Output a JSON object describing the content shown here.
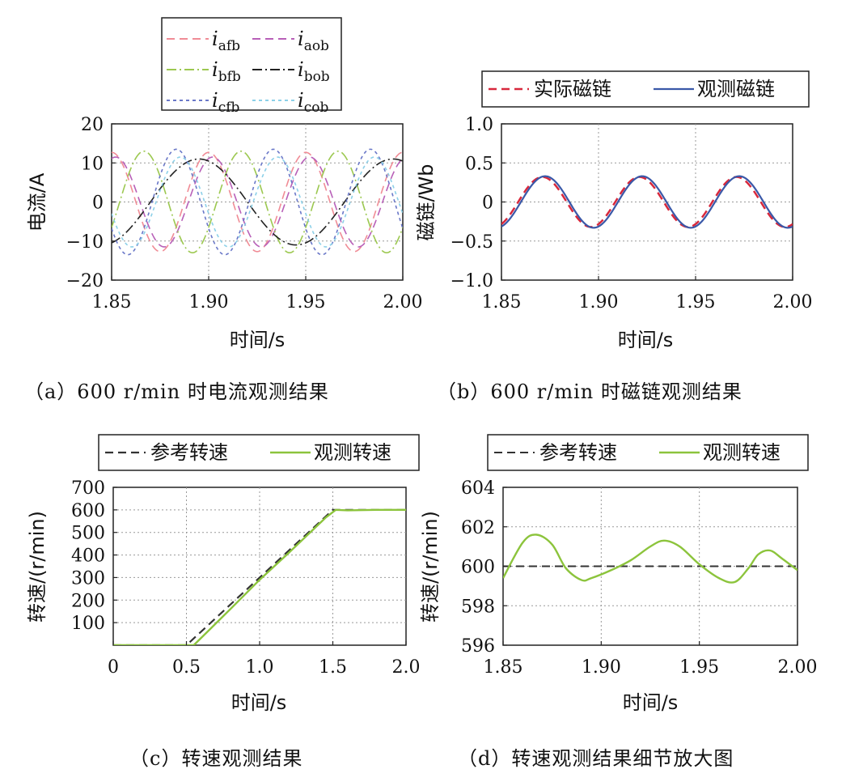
{
  "chart_data": [
    {
      "id": "a",
      "type": "line",
      "caption": "（a）600 r/min 时电流观测结果",
      "xlabel": "时间/s",
      "ylabel": "电流/A",
      "xlim": [
        1.85,
        2.0
      ],
      "ylim": [
        -20,
        20
      ],
      "xticks": [
        1.85,
        1.9,
        1.95,
        2.0
      ],
      "xtick_labels": [
        "1.85",
        "1.90",
        "1.95",
        "2.00"
      ],
      "yticks": [
        20,
        10,
        0,
        -10,
        -20
      ],
      "ytick_labels": [
        "20",
        "10",
        "0",
        "−10",
        "−20"
      ],
      "grid": true,
      "legend_placement": "top",
      "series": [
        {
          "name": "iafb",
          "label_base": "i",
          "label_sub": "afb",
          "color": "#f08c96",
          "dash": "10,6",
          "amplitude": 12.7,
          "frequency_hz": 20,
          "phase_deg": 90
        },
        {
          "name": "iaob",
          "label_base": "i",
          "label_sub": "aob",
          "color": "#b860b8",
          "dash": "10,6",
          "amplitude": 11.5,
          "frequency_hz": 20,
          "phase_deg": 75
        },
        {
          "name": "ibfb",
          "label_base": "i",
          "label_sub": "bfb",
          "color": "#9cc850",
          "dash": "12,4,2,4",
          "amplitude": 13.0,
          "frequency_hz": 20,
          "phase_deg": -30
        },
        {
          "name": "ibob",
          "label_base": "i",
          "label_sub": "bob",
          "color": "#222222",
          "dash": "12,4,2,4",
          "amplitude": 11.0,
          "frequency_hz": 10,
          "phase_deg": -72
        },
        {
          "name": "icfb",
          "label_base": "i",
          "label_sub": "cfb",
          "color": "#6a78c8",
          "dash": "4,4",
          "amplitude": 13.5,
          "frequency_hz": 20,
          "phase_deg": 210
        },
        {
          "name": "icob",
          "label_base": "i",
          "label_sub": "cob",
          "color": "#8cd0e8",
          "dash": "4,4",
          "amplitude": 11.5,
          "frequency_hz": 20,
          "phase_deg": 195
        }
      ]
    },
    {
      "id": "b",
      "type": "line",
      "caption": "（b）600 r/min 时磁链观测结果",
      "xlabel": "时间/s",
      "ylabel": "磁链/Wb",
      "xlim": [
        1.85,
        2.0
      ],
      "ylim": [
        -1.0,
        1.0
      ],
      "xticks": [
        1.85,
        1.9,
        1.95,
        2.0
      ],
      "xtick_labels": [
        "1.85",
        "1.90",
        "1.95",
        "2.00"
      ],
      "yticks": [
        1.0,
        0.5,
        0,
        -0.5,
        -1.0
      ],
      "ytick_labels": [
        "1.0",
        "0.5",
        "0",
        "−0.5",
        "−1.0"
      ],
      "grid": true,
      "legend_placement": "top",
      "series": [
        {
          "name": "实际磁链",
          "color": "#d8283c",
          "dash": "10,6",
          "width": 2.5,
          "amplitude": 0.32,
          "frequency_hz": 20,
          "phase_deg": -62
        },
        {
          "name": "观测磁链",
          "color": "#3a58a8",
          "dash": "",
          "width": 2.2,
          "amplitude": 0.33,
          "frequency_hz": 20,
          "phase_deg": -72
        }
      ]
    },
    {
      "id": "c",
      "type": "line",
      "caption": "（c）转速观测结果",
      "xlabel": "时间/s",
      "ylabel": "转速/(r/min)",
      "xlim": [
        0,
        2.0
      ],
      "ylim": [
        0,
        700
      ],
      "xticks": [
        0,
        0.5,
        1.0,
        1.5,
        2.0
      ],
      "xtick_labels": [
        "0",
        "0.5",
        "1.0",
        "1.5",
        "2.0"
      ],
      "yticks": [
        700,
        600,
        500,
        400,
        300,
        200,
        100
      ],
      "ytick_labels": [
        "700",
        "600",
        "500",
        "400",
        "300",
        "200",
        "100"
      ],
      "grid": true,
      "legend_placement": "top",
      "series": [
        {
          "name": "参考转速",
          "color": "#333333",
          "dash": "10,6",
          "width": 2.2,
          "x": [
            0,
            0.5,
            1.5,
            2.0
          ],
          "y": [
            0,
            0,
            600,
            600
          ]
        },
        {
          "name": "观测转速",
          "color": "#8cc43c",
          "dash": "",
          "width": 2.4,
          "x": [
            0,
            0.55,
            0.8,
            1.0,
            1.2,
            1.45,
            1.52,
            1.6,
            1.8,
            2.0
          ],
          "y": [
            0,
            0,
            160,
            290,
            410,
            565,
            600,
            598,
            600,
            600
          ]
        }
      ]
    },
    {
      "id": "d",
      "type": "line",
      "caption": "（d）转速观测结果细节放大图",
      "xlabel": "时间/s",
      "ylabel": "转速/(r/min)",
      "xlim": [
        1.85,
        2.0
      ],
      "ylim": [
        596,
        604
      ],
      "xticks": [
        1.85,
        1.9,
        1.95,
        2.0
      ],
      "xtick_labels": [
        "1.85",
        "1.90",
        "1.95",
        "2.00"
      ],
      "yticks": [
        604,
        602,
        600,
        598,
        596
      ],
      "ytick_labels": [
        "604",
        "602",
        "600",
        "598",
        "596"
      ],
      "grid": true,
      "legend_placement": "top",
      "series": [
        {
          "name": "参考转速",
          "color": "#333333",
          "dash": "10,6",
          "width": 2.0,
          "x": [
            1.85,
            2.0
          ],
          "y": [
            600,
            600
          ]
        },
        {
          "name": "观测转速",
          "color": "#8cc43c",
          "dash": "",
          "width": 2.4,
          "x": [
            1.85,
            1.86,
            1.867,
            1.875,
            1.882,
            1.89,
            1.895,
            1.905,
            1.915,
            1.925,
            1.932,
            1.94,
            1.95,
            1.96,
            1.968,
            1.975,
            1.98,
            1.986,
            1.992,
            2.0
          ],
          "y": [
            599.4,
            601.2,
            601.6,
            601.1,
            599.9,
            599.3,
            599.4,
            599.8,
            600.3,
            601.0,
            601.3,
            601.0,
            600.1,
            599.4,
            599.2,
            599.9,
            600.6,
            600.8,
            600.4,
            599.8
          ]
        }
      ]
    }
  ]
}
